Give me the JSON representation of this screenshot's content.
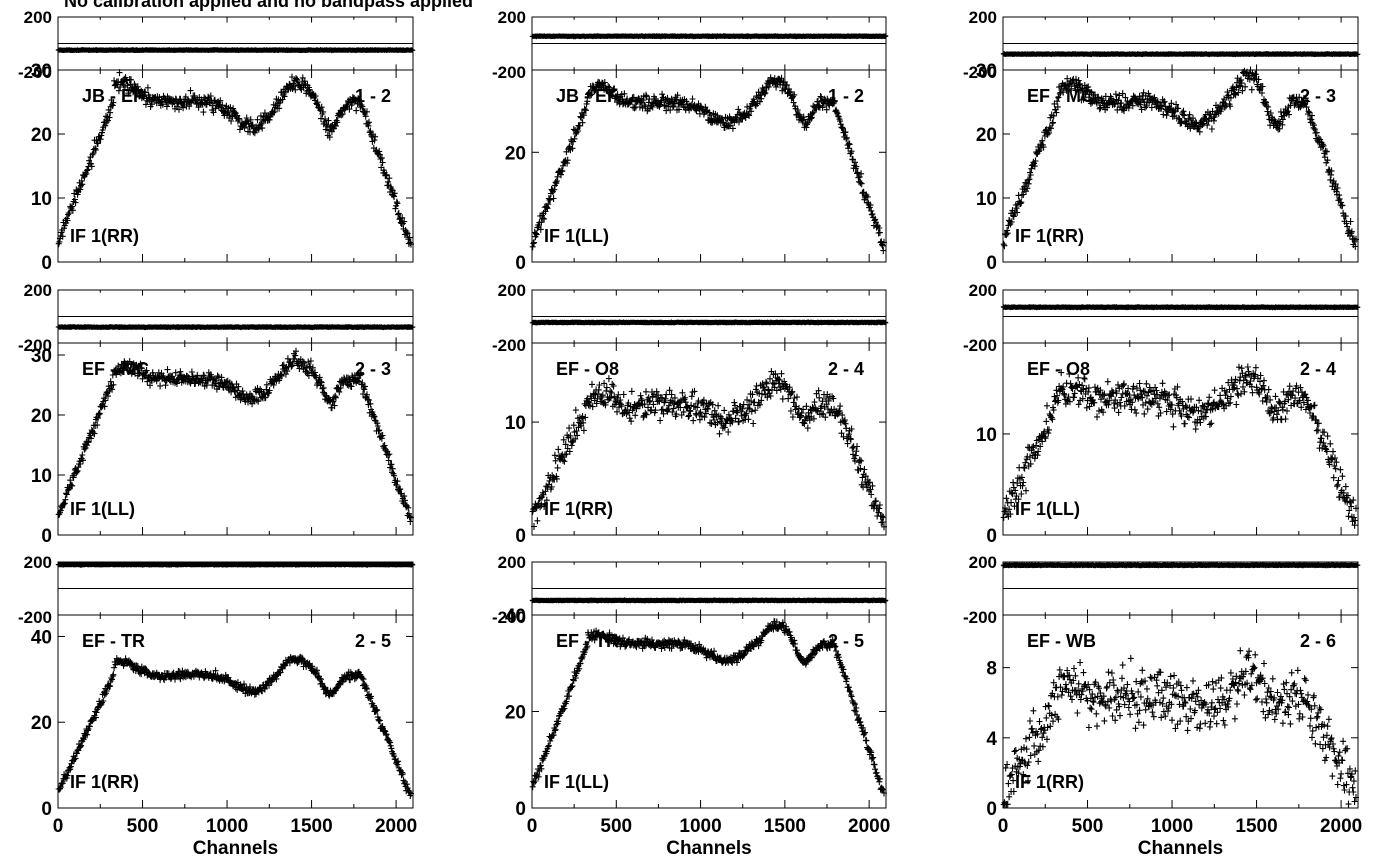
{
  "figure": {
    "title": "No calibration applied and no bandpass applied",
    "x_label": "Channels",
    "x_ticks": [
      0,
      500,
      1000,
      1500,
      2000
    ],
    "x_range": [
      0,
      2100
    ],
    "phase_ticks": [
      "200",
      "-200"
    ],
    "phase_range": [
      -200,
      200
    ]
  },
  "chart_data": [
    {
      "type": "scatter",
      "baseline": "JB - EF",
      "pair": "1 - 2",
      "stokes": "IF 1(RR)",
      "amp_ticks": [
        0,
        10,
        20,
        30
      ],
      "amp_range": [
        0,
        30
      ],
      "plateau": 25,
      "phase": -50,
      "bumps": [
        [
          380,
          3
        ],
        [
          1400,
          3
        ],
        [
          1700,
          0
        ]
      ],
      "noise": 1.2,
      "dip": 0.15
    },
    {
      "type": "scatter",
      "baseline": "JB - EF",
      "pair": "1 - 2",
      "stokes": "IF 1(LL)",
      "amp_ticks": [
        0,
        20
      ],
      "amp_range": [
        0,
        35
      ],
      "plateau": 29,
      "phase": 55,
      "bumps": [
        [
          400,
          3
        ],
        [
          1450,
          4
        ],
        [
          1700,
          0
        ]
      ],
      "noise": 1.3,
      "dip": 0.12
    },
    {
      "type": "scatter",
      "baseline": "EF - MC",
      "pair": "2 - 3",
      "stokes": "IF 1(RR)",
      "amp_ticks": [
        0,
        10,
        20,
        30
      ],
      "amp_range": [
        0,
        30
      ],
      "plateau": 25,
      "phase": -80,
      "bumps": [
        [
          400,
          3
        ],
        [
          1450,
          4
        ],
        [
          1700,
          0
        ]
      ],
      "noise": 1.3,
      "dip": 0.14
    },
    {
      "type": "scatter",
      "baseline": "EF - MC",
      "pair": "2 - 3",
      "stokes": "IF 1(LL)",
      "amp_ticks": [
        0,
        10,
        20,
        30
      ],
      "amp_range": [
        0,
        32
      ],
      "plateau": 26,
      "phase": -80,
      "bumps": [
        [
          400,
          2
        ],
        [
          1400,
          3
        ],
        [
          1700,
          0
        ]
      ],
      "noise": 1.2,
      "dip": 0.12
    },
    {
      "type": "scatter",
      "baseline": "EF - O8",
      "pair": "2 - 4",
      "stokes": "IF 1(RR)",
      "amp_ticks": [
        0,
        10
      ],
      "amp_range": [
        0,
        17
      ],
      "plateau": 11.5,
      "phase": -45,
      "bumps": [
        [
          400,
          1
        ],
        [
          1450,
          2
        ],
        [
          1700,
          0
        ]
      ],
      "noise": 1.4,
      "dip": 0.1
    },
    {
      "type": "scatter",
      "baseline": "EF - O8",
      "pair": "2 - 4",
      "stokes": "IF 1(LL)",
      "amp_ticks": [
        0,
        10
      ],
      "amp_range": [
        0,
        19
      ],
      "plateau": 13.5,
      "phase": 70,
      "bumps": [
        [
          400,
          1
        ],
        [
          1450,
          2
        ],
        [
          1700,
          0
        ]
      ],
      "noise": 1.6,
      "dip": 0.1
    },
    {
      "type": "scatter",
      "baseline": "EF - TR",
      "pair": "2 - 5",
      "stokes": "IF 1(RR)",
      "amp_ticks": [
        0,
        20,
        40
      ],
      "amp_range": [
        0,
        45
      ],
      "plateau": 31,
      "phase": 180,
      "bumps": [
        [
          380,
          3
        ],
        [
          1400,
          4
        ],
        [
          1700,
          0
        ]
      ],
      "noise": 1.0,
      "dip": 0.12
    },
    {
      "type": "scatter",
      "baseline": "EF - TR",
      "pair": "2 - 5",
      "stokes": "IF 1(LL)",
      "amp_ticks": [
        0,
        20,
        40
      ],
      "amp_range": [
        0,
        40
      ],
      "plateau": 34,
      "phase": -90,
      "bumps": [
        [
          380,
          2
        ],
        [
          1450,
          4
        ],
        [
          1700,
          0
        ]
      ],
      "noise": 1.0,
      "dip": 0.1
    },
    {
      "type": "scatter",
      "baseline": "EF - WB",
      "pair": "2 - 6",
      "stokes": "IF 1(RR)",
      "amp_ticks": [
        0,
        4,
        8
      ],
      "amp_range": [
        0,
        11
      ],
      "plateau": 6.3,
      "phase": 175,
      "bumps": [
        [
          400,
          0.8
        ],
        [
          1450,
          1.2
        ],
        [
          1700,
          0
        ]
      ],
      "noise": 1.5,
      "dip": 0.08
    }
  ]
}
